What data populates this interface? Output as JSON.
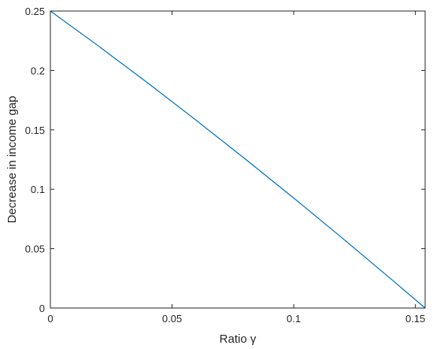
{
  "chart_data": {
    "type": "line",
    "title": "",
    "xlabel": "Ratio γ",
    "ylabel": "Decrease in income gap",
    "xlim": [
      0,
      0.154
    ],
    "ylim": [
      0,
      0.25
    ],
    "x_ticks": [
      0,
      0.05,
      0.1,
      0.15
    ],
    "x_tick_labels": [
      "0",
      "0.05",
      "0.1",
      "0.15"
    ],
    "y_ticks": [
      0,
      0.05,
      0.1,
      0.15,
      0.2,
      0.25
    ],
    "y_tick_labels": [
      "0",
      "0.05",
      "0.1",
      "0.15",
      "0.2",
      "0.25"
    ],
    "grid": false,
    "legend": "none",
    "series": [
      {
        "color": "#0072BD",
        "x": [
          0,
          0.02,
          0.04,
          0.06,
          0.08,
          0.1,
          0.12,
          0.14,
          0.154
        ],
        "y": [
          0.25,
          0.2202,
          0.1895,
          0.1579,
          0.1256,
          0.0926,
          0.0588,
          0.0244,
          0.0
        ]
      }
    ]
  }
}
